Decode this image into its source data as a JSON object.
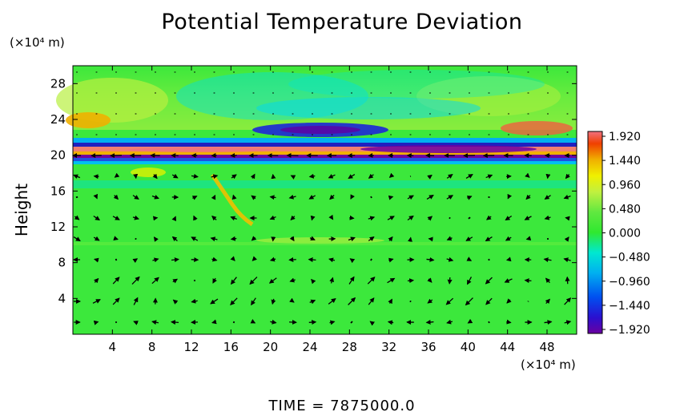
{
  "chart_data": {
    "type": "heatmap",
    "title": "Potential Temperature Deviation",
    "ylabel": "Height",
    "x_unit": "(×10⁴ m)",
    "y_unit": "(×10⁴ m)",
    "xlim": [
      0,
      51
    ],
    "ylim": [
      0,
      30
    ],
    "x_ticks": [
      "4",
      "8",
      "12",
      "16",
      "20",
      "24",
      "28",
      "32",
      "36",
      "40",
      "44",
      "48"
    ],
    "y_ticks": [
      "4",
      "8",
      "12",
      "16",
      "20",
      "24",
      "28"
    ],
    "colorbar": {
      "labels": [
        "1.920",
        "1.440",
        "0.960",
        "0.480",
        "0.000",
        "−0.480",
        "−0.960",
        "−1.440",
        "−1.920"
      ],
      "range": [
        -1.92,
        1.92
      ],
      "colors": [
        "#6a00a0",
        "#2a10d0",
        "#0050f0",
        "#00b0f0",
        "#00e8d0",
        "#30e830",
        "#40e040",
        "#a0f040",
        "#f0f000",
        "#f0b000",
        "#f04000",
        "#f06070"
      ]
    },
    "overlay": "wind vector arrows",
    "footer": "TIME  =  7875000.0"
  }
}
